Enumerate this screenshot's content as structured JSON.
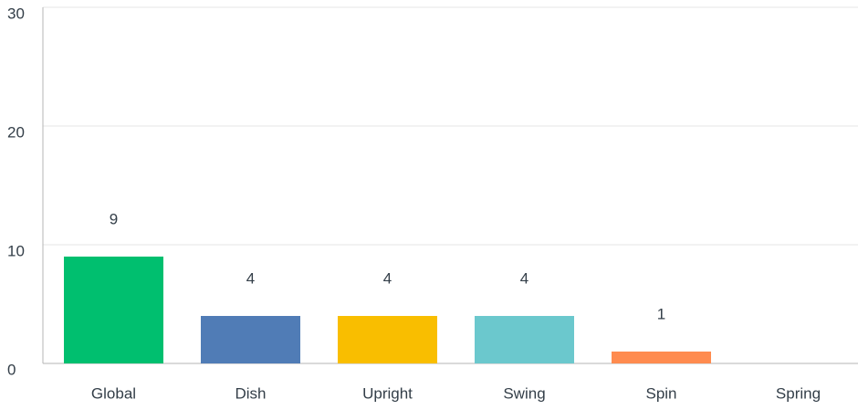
{
  "chart_data": {
    "type": "bar",
    "categories": [
      "Global",
      "Dish",
      "Upright",
      "Swing",
      "Spin",
      "Spring"
    ],
    "values": [
      9,
      4,
      4,
      4,
      1,
      0
    ],
    "colors": [
      "#00bf6f",
      "#507cb6",
      "#f9be00",
      "#6bc8cd",
      "#ff8b4f",
      "#d25f90"
    ],
    "ylim": [
      0,
      30
    ],
    "yticks": [
      0,
      10,
      20,
      30
    ],
    "grid": true
  }
}
